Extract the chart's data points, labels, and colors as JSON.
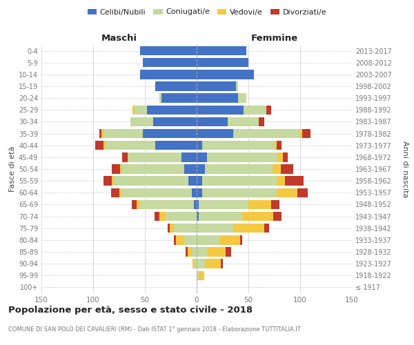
{
  "age_groups": [
    "100+",
    "95-99",
    "90-94",
    "85-89",
    "80-84",
    "75-79",
    "70-74",
    "65-69",
    "60-64",
    "55-59",
    "50-54",
    "45-49",
    "40-44",
    "35-39",
    "30-34",
    "25-29",
    "20-24",
    "15-19",
    "10-14",
    "5-9",
    "0-4"
  ],
  "birth_years": [
    "≤ 1917",
    "1918-1922",
    "1923-1927",
    "1928-1932",
    "1933-1937",
    "1938-1942",
    "1943-1947",
    "1948-1952",
    "1953-1957",
    "1958-1962",
    "1963-1967",
    "1968-1972",
    "1973-1977",
    "1978-1982",
    "1983-1987",
    "1988-1992",
    "1993-1997",
    "1998-2002",
    "2003-2007",
    "2008-2012",
    "2013-2017"
  ],
  "male_celibi": [
    0,
    0,
    0,
    0,
    0,
    0,
    0,
    3,
    5,
    8,
    12,
    15,
    40,
    52,
    42,
    48,
    34,
    40,
    55,
    52,
    55
  ],
  "male_coniugati": [
    0,
    0,
    2,
    5,
    12,
    22,
    30,
    52,
    68,
    72,
    60,
    52,
    48,
    38,
    22,
    12,
    2,
    0,
    0,
    0,
    0
  ],
  "male_vedovi": [
    0,
    0,
    2,
    4,
    8,
    4,
    6,
    3,
    2,
    2,
    2,
    0,
    2,
    2,
    0,
    2,
    0,
    0,
    0,
    0,
    0
  ],
  "male_divorziati": [
    0,
    0,
    0,
    2,
    2,
    2,
    5,
    5,
    8,
    8,
    8,
    5,
    8,
    2,
    0,
    0,
    0,
    0,
    0,
    0,
    0
  ],
  "fem_nubili": [
    0,
    0,
    0,
    0,
    0,
    0,
    2,
    2,
    5,
    5,
    8,
    10,
    5,
    35,
    30,
    45,
    40,
    38,
    55,
    50,
    48
  ],
  "fem_coniugate": [
    0,
    2,
    8,
    10,
    22,
    35,
    42,
    48,
    72,
    72,
    65,
    68,
    70,
    65,
    30,
    22,
    8,
    2,
    0,
    0,
    0
  ],
  "fem_vedove": [
    0,
    5,
    15,
    18,
    20,
    30,
    30,
    22,
    20,
    8,
    8,
    5,
    2,
    2,
    0,
    0,
    0,
    0,
    0,
    0,
    0
  ],
  "fem_divorziate": [
    0,
    0,
    2,
    5,
    2,
    5,
    8,
    8,
    10,
    18,
    12,
    5,
    5,
    8,
    5,
    5,
    0,
    0,
    0,
    0,
    0
  ],
  "color_celibi": "#4472c4",
  "color_coniugati": "#c5d9a0",
  "color_vedovi": "#f5c842",
  "color_divorziati": "#c0392b",
  "title": "Popolazione per età, sesso e stato civile - 2018",
  "subtitle": "COMUNE DI SAN POLO DEI CAVALIERI (RM) - Dati ISTAT 1° gennaio 2018 - Elaborazione TUTTITALIA.IT",
  "label_maschi": "Maschi",
  "label_femmine": "Femmine",
  "ylabel_left": "Fasce di età",
  "ylabel_right": "Anni di nascita",
  "legend_labels": [
    "Celibi/Nubili",
    "Coniugati/e",
    "Vedovi/e",
    "Divorziati/e"
  ],
  "xlim": 150,
  "bg_color": "#ffffff",
  "grid_color": "#cccccc",
  "text_dark": "#222222",
  "text_mid": "#444444",
  "text_light": "#777777"
}
